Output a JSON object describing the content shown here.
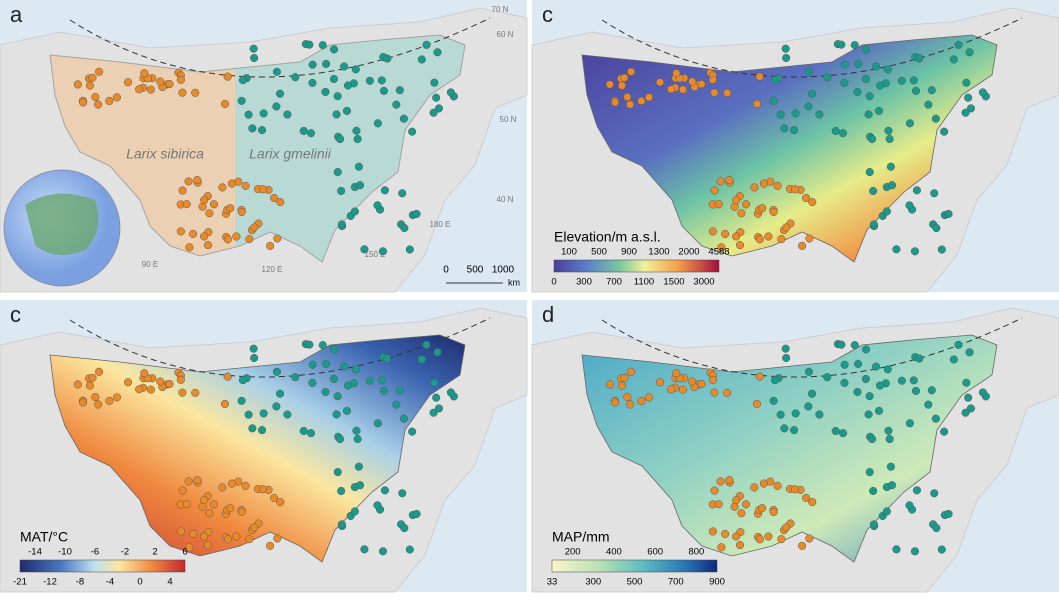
{
  "panels": [
    {
      "letter": "a",
      "species": [
        "Larix sibirica",
        "Larix gmelinii"
      ],
      "scale_bar": {
        "ticks": [
          "0",
          "500",
          "1000"
        ],
        "unit": "km"
      },
      "graticule": [
        "70 N",
        "60 N",
        "50 N",
        "40 N",
        "90 E",
        "120 E",
        "150 E",
        "180 E"
      ]
    },
    {
      "letter": "c",
      "legend": {
        "title": "Elevation/m a.s.l.",
        "top_ticks": [
          "100",
          "500",
          "900",
          "1300",
          "2000",
          "4588"
        ],
        "bottom_ticks": [
          "0",
          "300",
          "700",
          "1100",
          "1500",
          "3000"
        ]
      }
    },
    {
      "letter": "c",
      "legend": {
        "title": "MAT/°C",
        "top_ticks": [
          "-14",
          "-10",
          "-6",
          "-2",
          "2",
          "6"
        ],
        "bottom_ticks": [
          "-21",
          "-12",
          "-8",
          "-4",
          "0",
          "4"
        ]
      }
    },
    {
      "letter": "d",
      "legend": {
        "title": "MAP/mm",
        "top_ticks": [
          "200",
          "400",
          "600",
          "800"
        ],
        "bottom_ticks": [
          "33",
          "300",
          "500",
          "700",
          "900"
        ]
      }
    }
  ]
}
